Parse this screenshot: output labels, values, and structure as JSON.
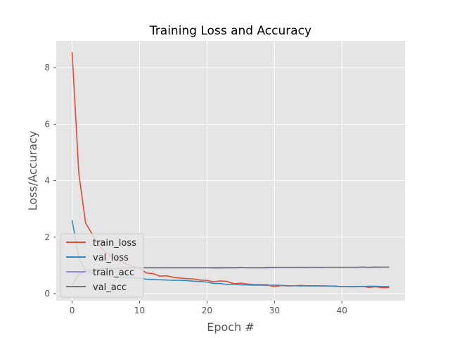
{
  "chart_data": {
    "type": "line",
    "title": "Training Loss and Accuracy",
    "xlabel": "Epoch #",
    "ylabel": "Loss/Accuracy",
    "xlim": [
      -2.35,
      49.35
    ],
    "ylim": [
      -0.25,
      8.95
    ],
    "xticks": [
      0,
      10,
      20,
      30,
      40
    ],
    "yticks": [
      0,
      2,
      4,
      6,
      8
    ],
    "grid": true,
    "legend_position": "lower-left",
    "x": [
      0,
      1,
      2,
      3,
      4,
      5,
      6,
      7,
      8,
      9,
      10,
      11,
      12,
      13,
      14,
      15,
      16,
      17,
      18,
      19,
      20,
      21,
      22,
      23,
      24,
      25,
      26,
      27,
      28,
      29,
      30,
      31,
      32,
      33,
      34,
      35,
      36,
      37,
      38,
      39,
      40,
      41,
      42,
      43,
      44,
      45,
      46,
      47
    ],
    "series": [
      {
        "name": "train_loss",
        "color": "#e24a33",
        "values": [
          8.55,
          4.25,
          2.5,
          2.1,
          1.7,
          1.45,
          1.28,
          1.15,
          1.05,
          0.96,
          0.9,
          0.73,
          0.71,
          0.62,
          0.63,
          0.58,
          0.55,
          0.53,
          0.52,
          0.48,
          0.47,
          0.42,
          0.45,
          0.43,
          0.35,
          0.37,
          0.34,
          0.32,
          0.32,
          0.31,
          0.24,
          0.29,
          0.27,
          0.28,
          0.29,
          0.27,
          0.28,
          0.27,
          0.27,
          0.26,
          0.25,
          0.24,
          0.24,
          0.26,
          0.22,
          0.24,
          0.21,
          0.22
        ]
      },
      {
        "name": "val_loss",
        "color": "#348abd",
        "values": [
          2.6,
          1.25,
          0.82,
          0.72,
          0.68,
          0.64,
          0.61,
          0.59,
          0.57,
          0.56,
          0.55,
          0.51,
          0.5,
          0.49,
          0.48,
          0.47,
          0.47,
          0.46,
          0.44,
          0.43,
          0.41,
          0.36,
          0.36,
          0.32,
          0.33,
          0.31,
          0.31,
          0.3,
          0.3,
          0.29,
          0.3,
          0.29,
          0.28,
          0.28,
          0.27,
          0.28,
          0.27,
          0.28,
          0.27,
          0.27,
          0.24,
          0.25,
          0.25,
          0.25,
          0.26,
          0.26,
          0.25,
          0.25
        ]
      },
      {
        "name": "train_acc",
        "color": "#988ed5",
        "values": [
          0.3,
          0.68,
          0.78,
          0.82,
          0.85,
          0.87,
          0.88,
          0.89,
          0.9,
          0.9,
          0.91,
          0.91,
          0.91,
          0.91,
          0.91,
          0.91,
          0.91,
          0.91,
          0.91,
          0.91,
          0.91,
          0.9,
          0.9,
          0.91,
          0.91,
          0.92,
          0.91,
          0.91,
          0.91,
          0.91,
          0.92,
          0.92,
          0.92,
          0.92,
          0.92,
          0.93,
          0.92,
          0.92,
          0.93,
          0.93,
          0.93,
          0.93,
          0.93,
          0.93,
          0.93,
          0.93,
          0.94,
          0.94
        ]
      },
      {
        "name": "val_acc",
        "color": "#777777",
        "values": [
          0.32,
          0.7,
          0.8,
          0.84,
          0.87,
          0.88,
          0.89,
          0.9,
          0.91,
          0.91,
          0.92,
          0.92,
          0.92,
          0.92,
          0.92,
          0.92,
          0.92,
          0.92,
          0.92,
          0.92,
          0.92,
          0.92,
          0.92,
          0.92,
          0.92,
          0.93,
          0.92,
          0.92,
          0.92,
          0.93,
          0.93,
          0.93,
          0.93,
          0.93,
          0.93,
          0.93,
          0.93,
          0.93,
          0.93,
          0.93,
          0.93,
          0.93,
          0.93,
          0.94,
          0.93,
          0.94,
          0.94,
          0.94
        ]
      }
    ],
    "colors": {
      "plot_background": "#e5e5e5",
      "grid": "#ffffff",
      "axis_text": "#555555"
    }
  }
}
